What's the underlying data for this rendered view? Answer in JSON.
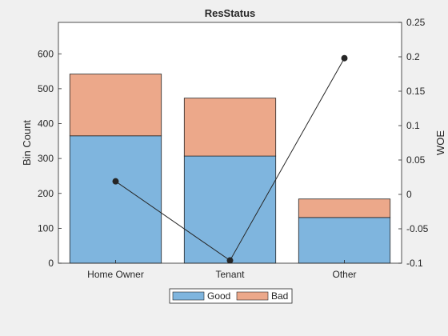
{
  "chart_data": {
    "type": "bar",
    "stacked": true,
    "title": "ResStatus",
    "categories": [
      "Home Owner",
      "Tenant",
      "Other"
    ],
    "series": [
      {
        "name": "Good",
        "values": [
          365,
          307,
          131
        ],
        "color": "#7fb5de"
      },
      {
        "name": "Bad",
        "values": [
          177,
          166,
          53
        ],
        "color": "#eca88a"
      }
    ],
    "woe": {
      "values": [
        0.019,
        -0.096,
        0.198
      ],
      "color": "#262626"
    },
    "ylabel_left": "Bin Count",
    "ylabel_right": "WOE",
    "ylim_left": [
      0,
      690
    ],
    "ylim_right": [
      -0.1,
      0.25
    ],
    "yticks_left": [
      "0",
      "100",
      "200",
      "300",
      "400",
      "500",
      "600"
    ],
    "yticks_right": [
      "-0.1",
      "-0.05",
      "0",
      "0.05",
      "0.1",
      "0.15",
      "0.2",
      "0.25"
    ],
    "legend_position": "bottom-center",
    "grid": false
  }
}
